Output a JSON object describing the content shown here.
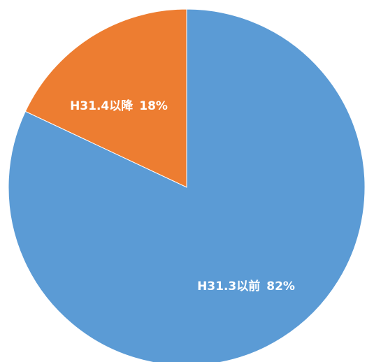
{
  "chart_data": {
    "type": "pie",
    "slices": [
      {
        "label": "H31.4以降",
        "percent_label": "18%",
        "value": 18,
        "color": "#ED7D31"
      },
      {
        "label": "H31.3以前",
        "percent_label": "82%",
        "value": 82,
        "color": "#5B9BD5"
      }
    ],
    "start": "12 o'clock, counter-clockwise",
    "legend": "none"
  }
}
